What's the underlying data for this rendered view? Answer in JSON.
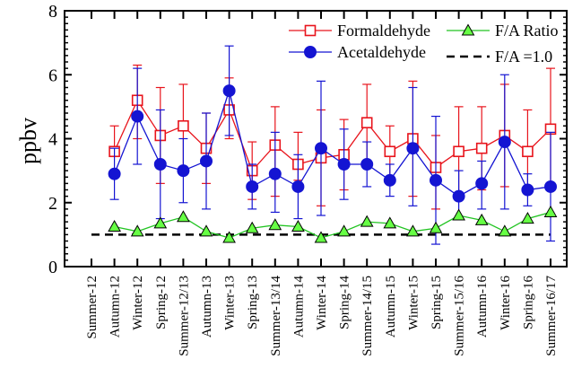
{
  "chart_data": {
    "type": "line",
    "ylabel": "ppbv",
    "xlabel": "",
    "ylim": [
      0,
      8
    ],
    "yticks": [
      0,
      2,
      4,
      6,
      8
    ],
    "legend_position": "top-right",
    "categories": [
      "Summer-12",
      "Autumn-12",
      "Winter-12",
      "Spring-12",
      "Summer-12/13",
      "Autumn-13",
      "Winter-13",
      "Spring-13",
      "Summer-13/14",
      "Autumn-14",
      "Winter-14",
      "Spring-14",
      "Summer-14/15",
      "Autumn-15",
      "Winter-15",
      "Spring-15",
      "Summer-15/16",
      "Autumn-16",
      "Winter-16",
      "Spring-16",
      "Summer-16/17"
    ],
    "series": [
      {
        "name": "Formaldehyde",
        "color": "#e8141c",
        "marker": "open-square",
        "values": [
          null,
          3.6,
          5.2,
          4.1,
          4.4,
          3.7,
          4.9,
          3.0,
          3.8,
          3.2,
          3.4,
          3.5,
          4.5,
          3.6,
          4.0,
          3.1,
          3.6,
          3.7,
          4.1,
          3.6,
          4.3
        ],
        "err_low": [
          null,
          3.5,
          4.0,
          2.6,
          3.1,
          2.6,
          4.0,
          2.1,
          2.2,
          2.7,
          1.9,
          2.4,
          3.3,
          2.8,
          2.2,
          1.8,
          2.1,
          2.4,
          2.5,
          2.4,
          2.5
        ],
        "err_high": [
          null,
          4.4,
          6.3,
          5.6,
          5.7,
          4.8,
          5.9,
          3.9,
          5.0,
          4.2,
          4.9,
          4.6,
          5.7,
          4.4,
          5.8,
          4.1,
          5.0,
          5.0,
          5.7,
          4.9,
          6.2
        ]
      },
      {
        "name": "Acetaldehyde",
        "color": "#1414d2",
        "marker": "filled-circle",
        "values": [
          null,
          2.9,
          4.7,
          3.2,
          3.0,
          3.3,
          5.5,
          2.5,
          2.9,
          2.5,
          3.7,
          3.2,
          3.2,
          2.7,
          3.7,
          2.7,
          2.2,
          2.6,
          3.9,
          2.4,
          2.5
        ],
        "err_low": [
          null,
          2.1,
          3.2,
          1.5,
          2.0,
          1.8,
          4.1,
          1.8,
          1.7,
          1.5,
          1.6,
          2.1,
          2.5,
          2.2,
          1.9,
          0.7,
          1.5,
          1.8,
          1.8,
          1.9,
          0.8
        ],
        "err_high": [
          null,
          3.7,
          6.2,
          4.9,
          4.0,
          4.8,
          6.9,
          3.2,
          4.2,
          3.5,
          5.8,
          4.3,
          3.9,
          3.2,
          5.6,
          4.7,
          3.0,
          3.3,
          6.0,
          2.9,
          4.2
        ]
      },
      {
        "name": "F/A Ratio",
        "color": "#22c422",
        "marker_fill": "#66ff44",
        "marker": "filled-triangle",
        "values": [
          null,
          1.25,
          1.1,
          1.35,
          1.55,
          1.1,
          0.9,
          1.2,
          1.3,
          1.25,
          0.9,
          1.1,
          1.4,
          1.35,
          1.1,
          1.2,
          1.6,
          1.45,
          1.1,
          1.5,
          1.7
        ]
      }
    ],
    "reference_line": {
      "name": "F/A =1.0",
      "value": 1.0,
      "color": "#000000",
      "style": "dashed"
    }
  }
}
